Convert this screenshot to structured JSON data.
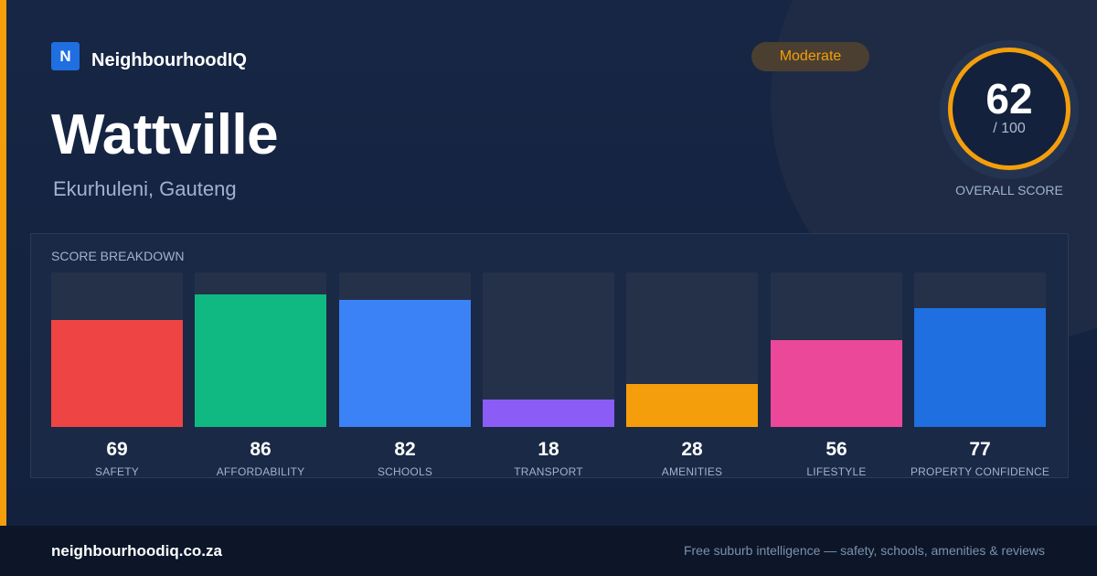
{
  "brand": {
    "logo_letter": "N",
    "name": "NeighbourhoodIQ"
  },
  "suburb": {
    "name": "Wattville",
    "location": "Ekurhuleni, Gauteng"
  },
  "rating_badge": "Moderate",
  "overall": {
    "score": "62",
    "max": "/ 100",
    "caption": "OVERALL SCORE"
  },
  "breakdown": {
    "title": "SCORE BREAKDOWN",
    "items": [
      {
        "label": "SAFETY",
        "value": 69,
        "color": "#ef4444"
      },
      {
        "label": "AFFORDABILITY",
        "value": 86,
        "color": "#10b981"
      },
      {
        "label": "SCHOOLS",
        "value": 82,
        "color": "#3b82f6"
      },
      {
        "label": "TRANSPORT",
        "value": 18,
        "color": "#8b5cf6"
      },
      {
        "label": "AMENITIES",
        "value": 28,
        "color": "#f59e0b"
      },
      {
        "label": "LIFESTYLE",
        "value": 56,
        "color": "#ec4899"
      },
      {
        "label": "PROPERTY CONFIDENCE",
        "value": 77,
        "color": "#1f6fe0"
      }
    ]
  },
  "footer": {
    "url": "neighbourhoodiq.co.za",
    "tagline": "Free suburb intelligence — safety, schools, amenities & reviews"
  },
  "colors": {
    "accent": "#f59e0b",
    "background": "#15233f"
  }
}
